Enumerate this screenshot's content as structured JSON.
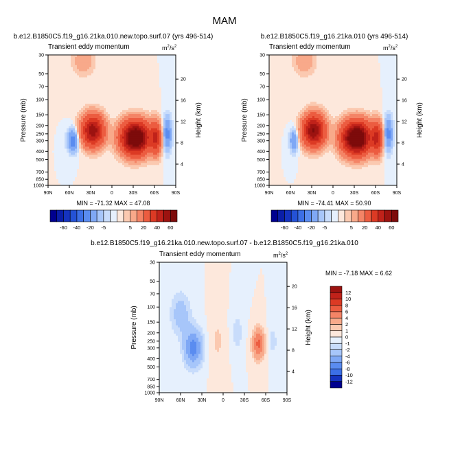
{
  "page_title": "MAM",
  "chart_data": {
    "type": "heatmap",
    "units": "m²/s²",
    "panels": [
      {
        "id": "exp",
        "run": "b.e12.B1850C5.f19_g16.21ka.010.new.topo.surf.07 (yrs 496-514)",
        "subtitle": "Transient eddy momentum",
        "units_label": "m",
        "units_exp": "2",
        "units_sep": "/s",
        "units_exp2": "2",
        "xlabel": "",
        "ylabel": "Pressure (mb)",
        "ylabel_right": "Height (km)",
        "x_ticks": [
          "90N",
          "60N",
          "30N",
          "0",
          "30S",
          "60S",
          "90S"
        ],
        "p_ticks": [
          "30",
          "50",
          "70",
          "100",
          "150",
          "200",
          "250",
          "300",
          "400",
          "500",
          "700",
          "850",
          "1000"
        ],
        "h_ticks": [
          "20",
          "16",
          "12",
          "8",
          "4"
        ],
        "min_text": "MIN = -71.32   MAX =  47.08",
        "min": -71.32,
        "max": 47.08
      },
      {
        "id": "ctl",
        "run": "b.e12.B1850C5.f19_g16.21ka.010 (yrs 496-514)",
        "subtitle": "Transient eddy momentum",
        "units_label": "m",
        "units_exp": "2",
        "units_sep": "/s",
        "units_exp2": "2",
        "xlabel": "",
        "ylabel": "Pressure (mb)",
        "ylabel_right": "Height (km)",
        "x_ticks": [
          "90N",
          "60N",
          "30N",
          "0",
          "30S",
          "60S",
          "90S"
        ],
        "p_ticks": [
          "30",
          "50",
          "70",
          "100",
          "150",
          "200",
          "250",
          "300",
          "400",
          "500",
          "700",
          "850",
          "1000"
        ],
        "h_ticks": [
          "20",
          "16",
          "12",
          "8",
          "4"
        ],
        "min_text": "MIN = -74.41   MAX =  50.90",
        "min": -74.41,
        "max": 50.9
      },
      {
        "id": "diff",
        "run": "b.e12.B1850C5.f19_g16.21ka.010.new.topo.surf.07 - b.e12.B1850C5.f19_g16.21ka.010",
        "subtitle": "Transient eddy momentum",
        "units_label": "m",
        "units_exp": "2",
        "units_sep": "/s",
        "units_exp2": "2",
        "xlabel": "",
        "ylabel": "Pressure (mb)",
        "ylabel_right": "Height (km)",
        "x_ticks": [
          "90N",
          "60N",
          "30N",
          "0",
          "30S",
          "60S",
          "90S"
        ],
        "p_ticks": [
          "30",
          "50",
          "70",
          "100",
          "150",
          "200",
          "250",
          "300",
          "400",
          "500",
          "700",
          "850",
          "1000"
        ],
        "h_ticks": [
          "20",
          "16",
          "12",
          "8",
          "4"
        ],
        "min_text": "MIN = -7.18   MAX =  6.62",
        "min": -7.18,
        "max": 6.62
      }
    ],
    "colorbar_main": {
      "labels": [
        "-60",
        "-40",
        "-20",
        "-5",
        "5",
        "20",
        "40",
        "60"
      ],
      "colors": [
        "#00008f",
        "#0a1ea8",
        "#1533bf",
        "#2452d6",
        "#3c6fe6",
        "#5a8cf0",
        "#7fa8f5",
        "#a7c6fa",
        "#c8dcfb",
        "#e6f0fd",
        "#fde8dc",
        "#fbc9b0",
        "#f8a98a",
        "#f48466",
        "#ec5c40",
        "#dc3a24",
        "#c0221a",
        "#9c1310",
        "#7d0b0b"
      ]
    },
    "colorbar_diff": {
      "labels": [
        "12",
        "10",
        "8",
        "6",
        "4",
        "2",
        "1",
        "0",
        "-1",
        "-2",
        "-4",
        "-6",
        "-8",
        "-10",
        "-12"
      ],
      "colors": [
        "#9c1310",
        "#c0221a",
        "#dc3a24",
        "#ec5c40",
        "#f48466",
        "#f8a98a",
        "#fbc9b0",
        "#fde8dc",
        "#e6f0fd",
        "#c8dcfb",
        "#a7c6fa",
        "#7fa8f5",
        "#5a8cf0",
        "#3c6fe6",
        "#1533bf",
        "#00008f"
      ]
    },
    "field_model": {
      "exp": [
        {
          "lat": -33,
          "p": 280,
          "amp": 71,
          "sx": 13,
          "sy": 0.28
        },
        {
          "lat": 27,
          "p": 230,
          "amp": 47,
          "sx": 10,
          "sy": 0.27
        },
        {
          "lat": -62,
          "p": 280,
          "amp": 28,
          "sx": 5,
          "sy": 0.28
        },
        {
          "lat": 55,
          "p": 300,
          "amp": -14,
          "sx": 5,
          "sy": 0.2
        },
        {
          "lat": -78,
          "p": 250,
          "amp": -12,
          "sx": 4,
          "sy": 0.3
        },
        {
          "lat": 40,
          "p": 35,
          "amp": 5,
          "sx": 10,
          "sy": 0.25
        }
      ],
      "ctl": [
        {
          "lat": -33,
          "p": 280,
          "amp": 74,
          "sx": 13,
          "sy": 0.28
        },
        {
          "lat": 27,
          "p": 230,
          "amp": 51,
          "sx": 10,
          "sy": 0.27
        },
        {
          "lat": -62,
          "p": 280,
          "amp": 29,
          "sx": 5,
          "sy": 0.28
        },
        {
          "lat": 55,
          "p": 300,
          "amp": -10,
          "sx": 4,
          "sy": 0.2
        },
        {
          "lat": -78,
          "p": 250,
          "amp": -12,
          "sx": 4,
          "sy": 0.3
        },
        {
          "lat": 40,
          "p": 35,
          "amp": 5,
          "sx": 10,
          "sy": 0.25
        }
      ],
      "diff": [
        {
          "lat": 42,
          "p": 300,
          "amp": -7,
          "sx": 9,
          "sy": 0.35
        },
        {
          "lat": 60,
          "p": 120,
          "amp": -3,
          "sx": 10,
          "sy": 0.4
        },
        {
          "lat": -50,
          "p": 270,
          "amp": 6.5,
          "sx": 6,
          "sy": 0.28
        },
        {
          "lat": -20,
          "p": 200,
          "amp": -1.5,
          "sx": 6,
          "sy": 0.4
        },
        {
          "lat": -70,
          "p": 250,
          "amp": -1.5,
          "sx": 5,
          "sy": 0.3
        },
        {
          "lat": 8,
          "p": 250,
          "amp": 1.2,
          "sx": 8,
          "sy": 0.5
        }
      ]
    }
  }
}
